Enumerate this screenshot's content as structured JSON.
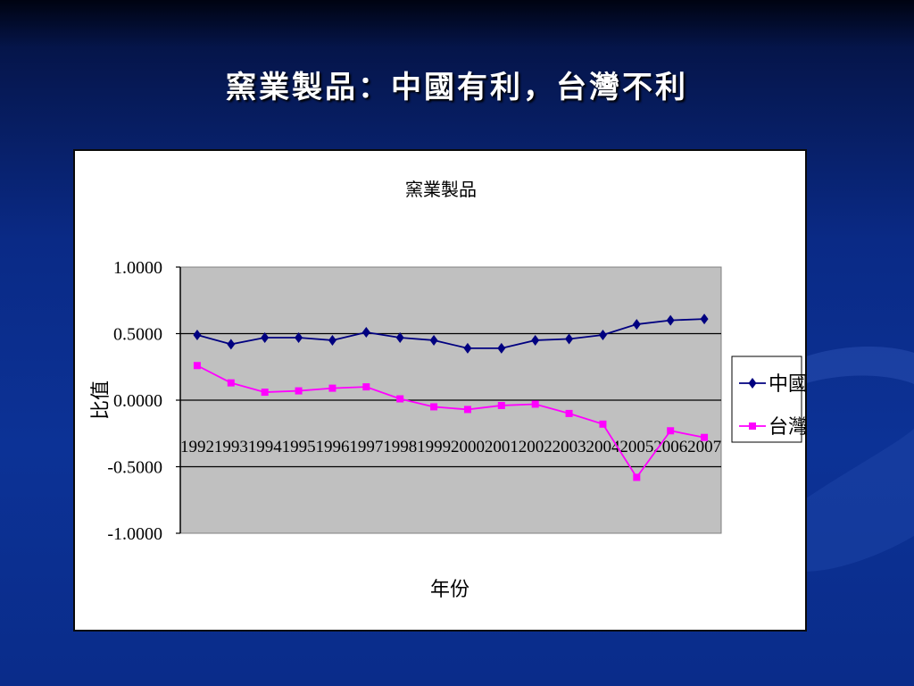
{
  "slide": {
    "title": "窯業製品：中國有利，台灣不利"
  },
  "chart_data": {
    "type": "line",
    "title": "窯業製品",
    "xlabel": "年份",
    "ylabel": "比值",
    "ylim": [
      -1.0,
      1.0
    ],
    "yticks": [
      "1.0000",
      "0.5000",
      "0.0000",
      "-0.5000",
      "-1.0000"
    ],
    "ytick_values": [
      1.0,
      0.5,
      0.0,
      -0.5,
      -1.0
    ],
    "categories": [
      "1992",
      "1993",
      "1994",
      "1995",
      "1996",
      "1997",
      "1998",
      "1999",
      "2000",
      "2001",
      "2002",
      "2003",
      "2004",
      "2005",
      "2006",
      "2007"
    ],
    "grid": true,
    "legend_position": "right",
    "series": [
      {
        "name": "中國",
        "color": "#000080",
        "marker": "diamond",
        "values": [
          0.49,
          0.42,
          0.47,
          0.47,
          0.45,
          0.51,
          0.47,
          0.45,
          0.39,
          0.39,
          0.45,
          0.46,
          0.49,
          0.57,
          0.6,
          0.61
        ]
      },
      {
        "name": "台灣",
        "color": "#ff00ff",
        "marker": "square",
        "values": [
          0.26,
          0.13,
          0.06,
          0.07,
          0.09,
          0.1,
          0.01,
          -0.05,
          -0.07,
          -0.04,
          -0.03,
          -0.1,
          -0.18,
          -0.58,
          -0.23,
          -0.28
        ]
      }
    ]
  }
}
